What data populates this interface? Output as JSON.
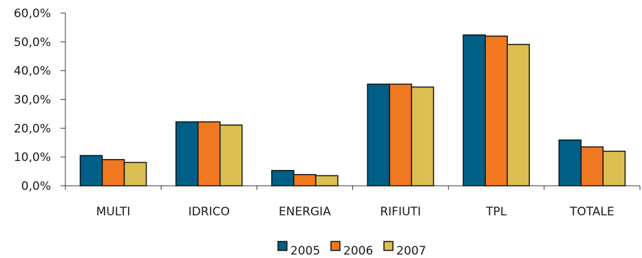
{
  "chart_data": {
    "type": "bar",
    "categories": [
      "MULTI",
      "IDRICO",
      "ENERGIA",
      "RIFIUTI",
      "TPL",
      "TOTALE"
    ],
    "series": [
      {
        "name": "2005",
        "color": "#005f86",
        "values": [
          10.5,
          22.2,
          5.3,
          35.3,
          52.4,
          15.9
        ]
      },
      {
        "name": "2006",
        "color": "#f07820",
        "values": [
          9.1,
          22.2,
          3.9,
          35.3,
          52.0,
          13.5
        ]
      },
      {
        "name": "2007",
        "color": "#dcbf52",
        "values": [
          8.1,
          21.1,
          3.5,
          34.3,
          49.1,
          12.0
        ]
      }
    ],
    "y_ticks": [
      "0,0%",
      "10,0%",
      "20,0%",
      "30,0%",
      "40,0%",
      "50,0%",
      "60,0%"
    ],
    "ylim": [
      0,
      60
    ],
    "y_tick_step": 10,
    "title": "",
    "xlabel": "",
    "ylabel": "",
    "grid": false,
    "legend_position": "bottom"
  }
}
